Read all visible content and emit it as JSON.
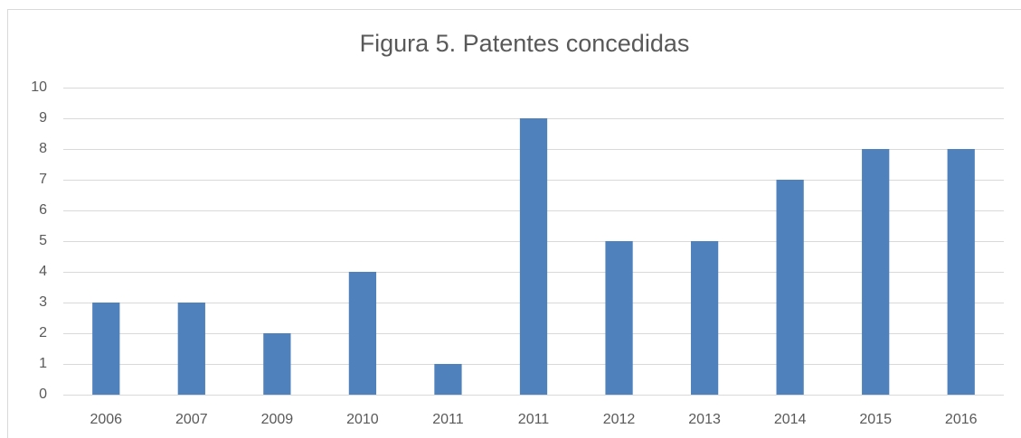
{
  "chart_data": {
    "type": "bar",
    "title": "Figura 5. Patentes concedidas",
    "categories": [
      "2006",
      "2007",
      "2009",
      "2010",
      "2011",
      "2011",
      "2012",
      "2013",
      "2014",
      "2015",
      "2016"
    ],
    "values": [
      3,
      3,
      2,
      4,
      1,
      9,
      5,
      5,
      7,
      8,
      8
    ],
    "color": "#4f81bd",
    "ylim": [
      0,
      10
    ],
    "yticks": [
      0,
      1,
      2,
      3,
      4,
      5,
      6,
      7,
      8,
      9,
      10
    ],
    "grid": true
  }
}
